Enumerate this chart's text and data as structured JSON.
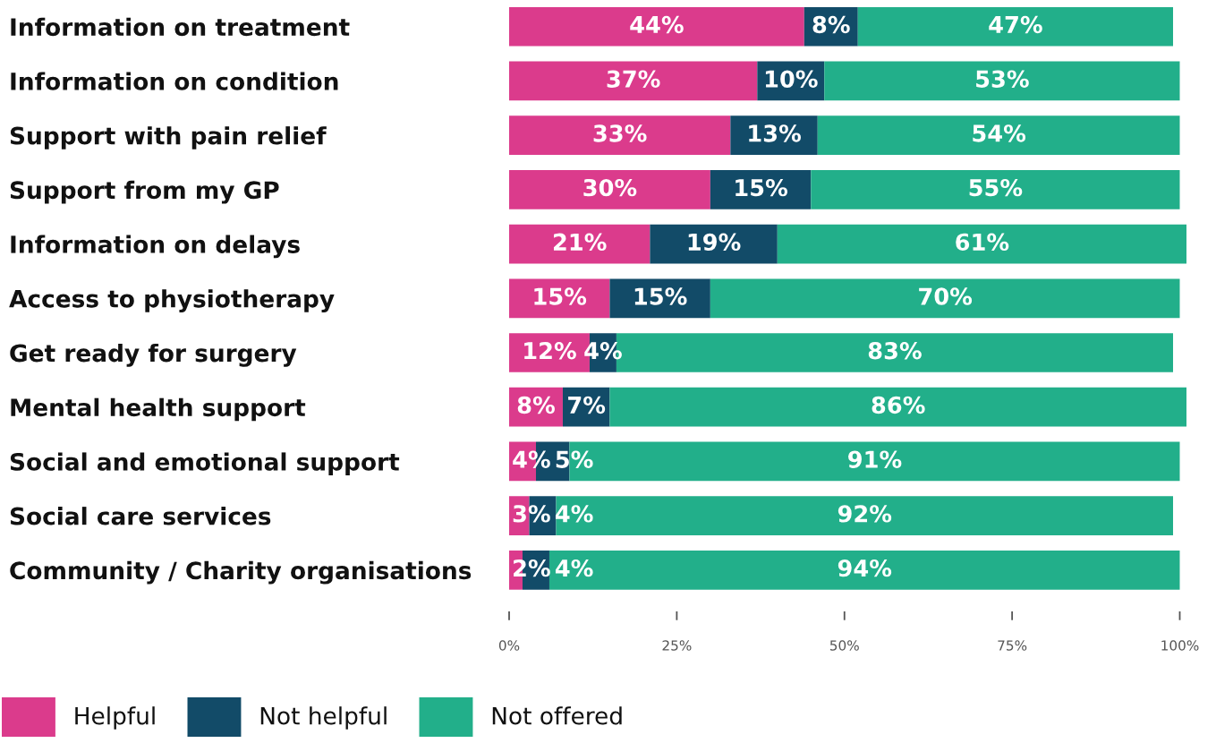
{
  "chart_data": {
    "type": "bar",
    "orientation": "horizontal",
    "stacked": true,
    "categories": [
      "Information on treatment",
      "Information on condition",
      "Support with pain relief",
      "Support from my GP",
      "Information on delays",
      "Access to physiotherapy",
      "Get ready for surgery",
      "Mental health support",
      "Social and emotional support",
      "Social care services",
      "Community / Charity organisations"
    ],
    "series": [
      {
        "name": "Helpful",
        "color": "#db3b8c",
        "values": [
          44,
          37,
          33,
          30,
          21,
          15,
          12,
          8,
          4,
          3,
          2
        ],
        "value_labels": [
          "44%",
          "37%",
          "33%",
          "30%",
          "21%",
          "15%",
          "12%",
          "8%",
          "4%",
          "3%",
          "2%"
        ]
      },
      {
        "name": "Not helpful",
        "color": "#124b68",
        "values": [
          8,
          10,
          13,
          15,
          19,
          15,
          4,
          7,
          5,
          4,
          4
        ],
        "value_labels": [
          "8%",
          "10%",
          "13%",
          "15%",
          "19%",
          "15%",
          "4%",
          "7%",
          "5%",
          "4%",
          "4%"
        ]
      },
      {
        "name": "Not offered",
        "color": "#22af8a",
        "values": [
          47,
          53,
          54,
          55,
          61,
          70,
          83,
          86,
          91,
          92,
          94
        ],
        "value_labels": [
          "47%",
          "53%",
          "54%",
          "55%",
          "61%",
          "70%",
          "83%",
          "86%",
          "91%",
          "92%",
          "94%"
        ]
      }
    ],
    "xlim": [
      0,
      101
    ],
    "xticks": [
      {
        "value": 0,
        "label": "0%"
      },
      {
        "value": 25,
        "label": "25%"
      },
      {
        "value": 50,
        "label": "50%"
      },
      {
        "value": 75,
        "label": "75%"
      },
      {
        "value": 100,
        "label": "100%"
      }
    ],
    "legend": "bottom"
  }
}
